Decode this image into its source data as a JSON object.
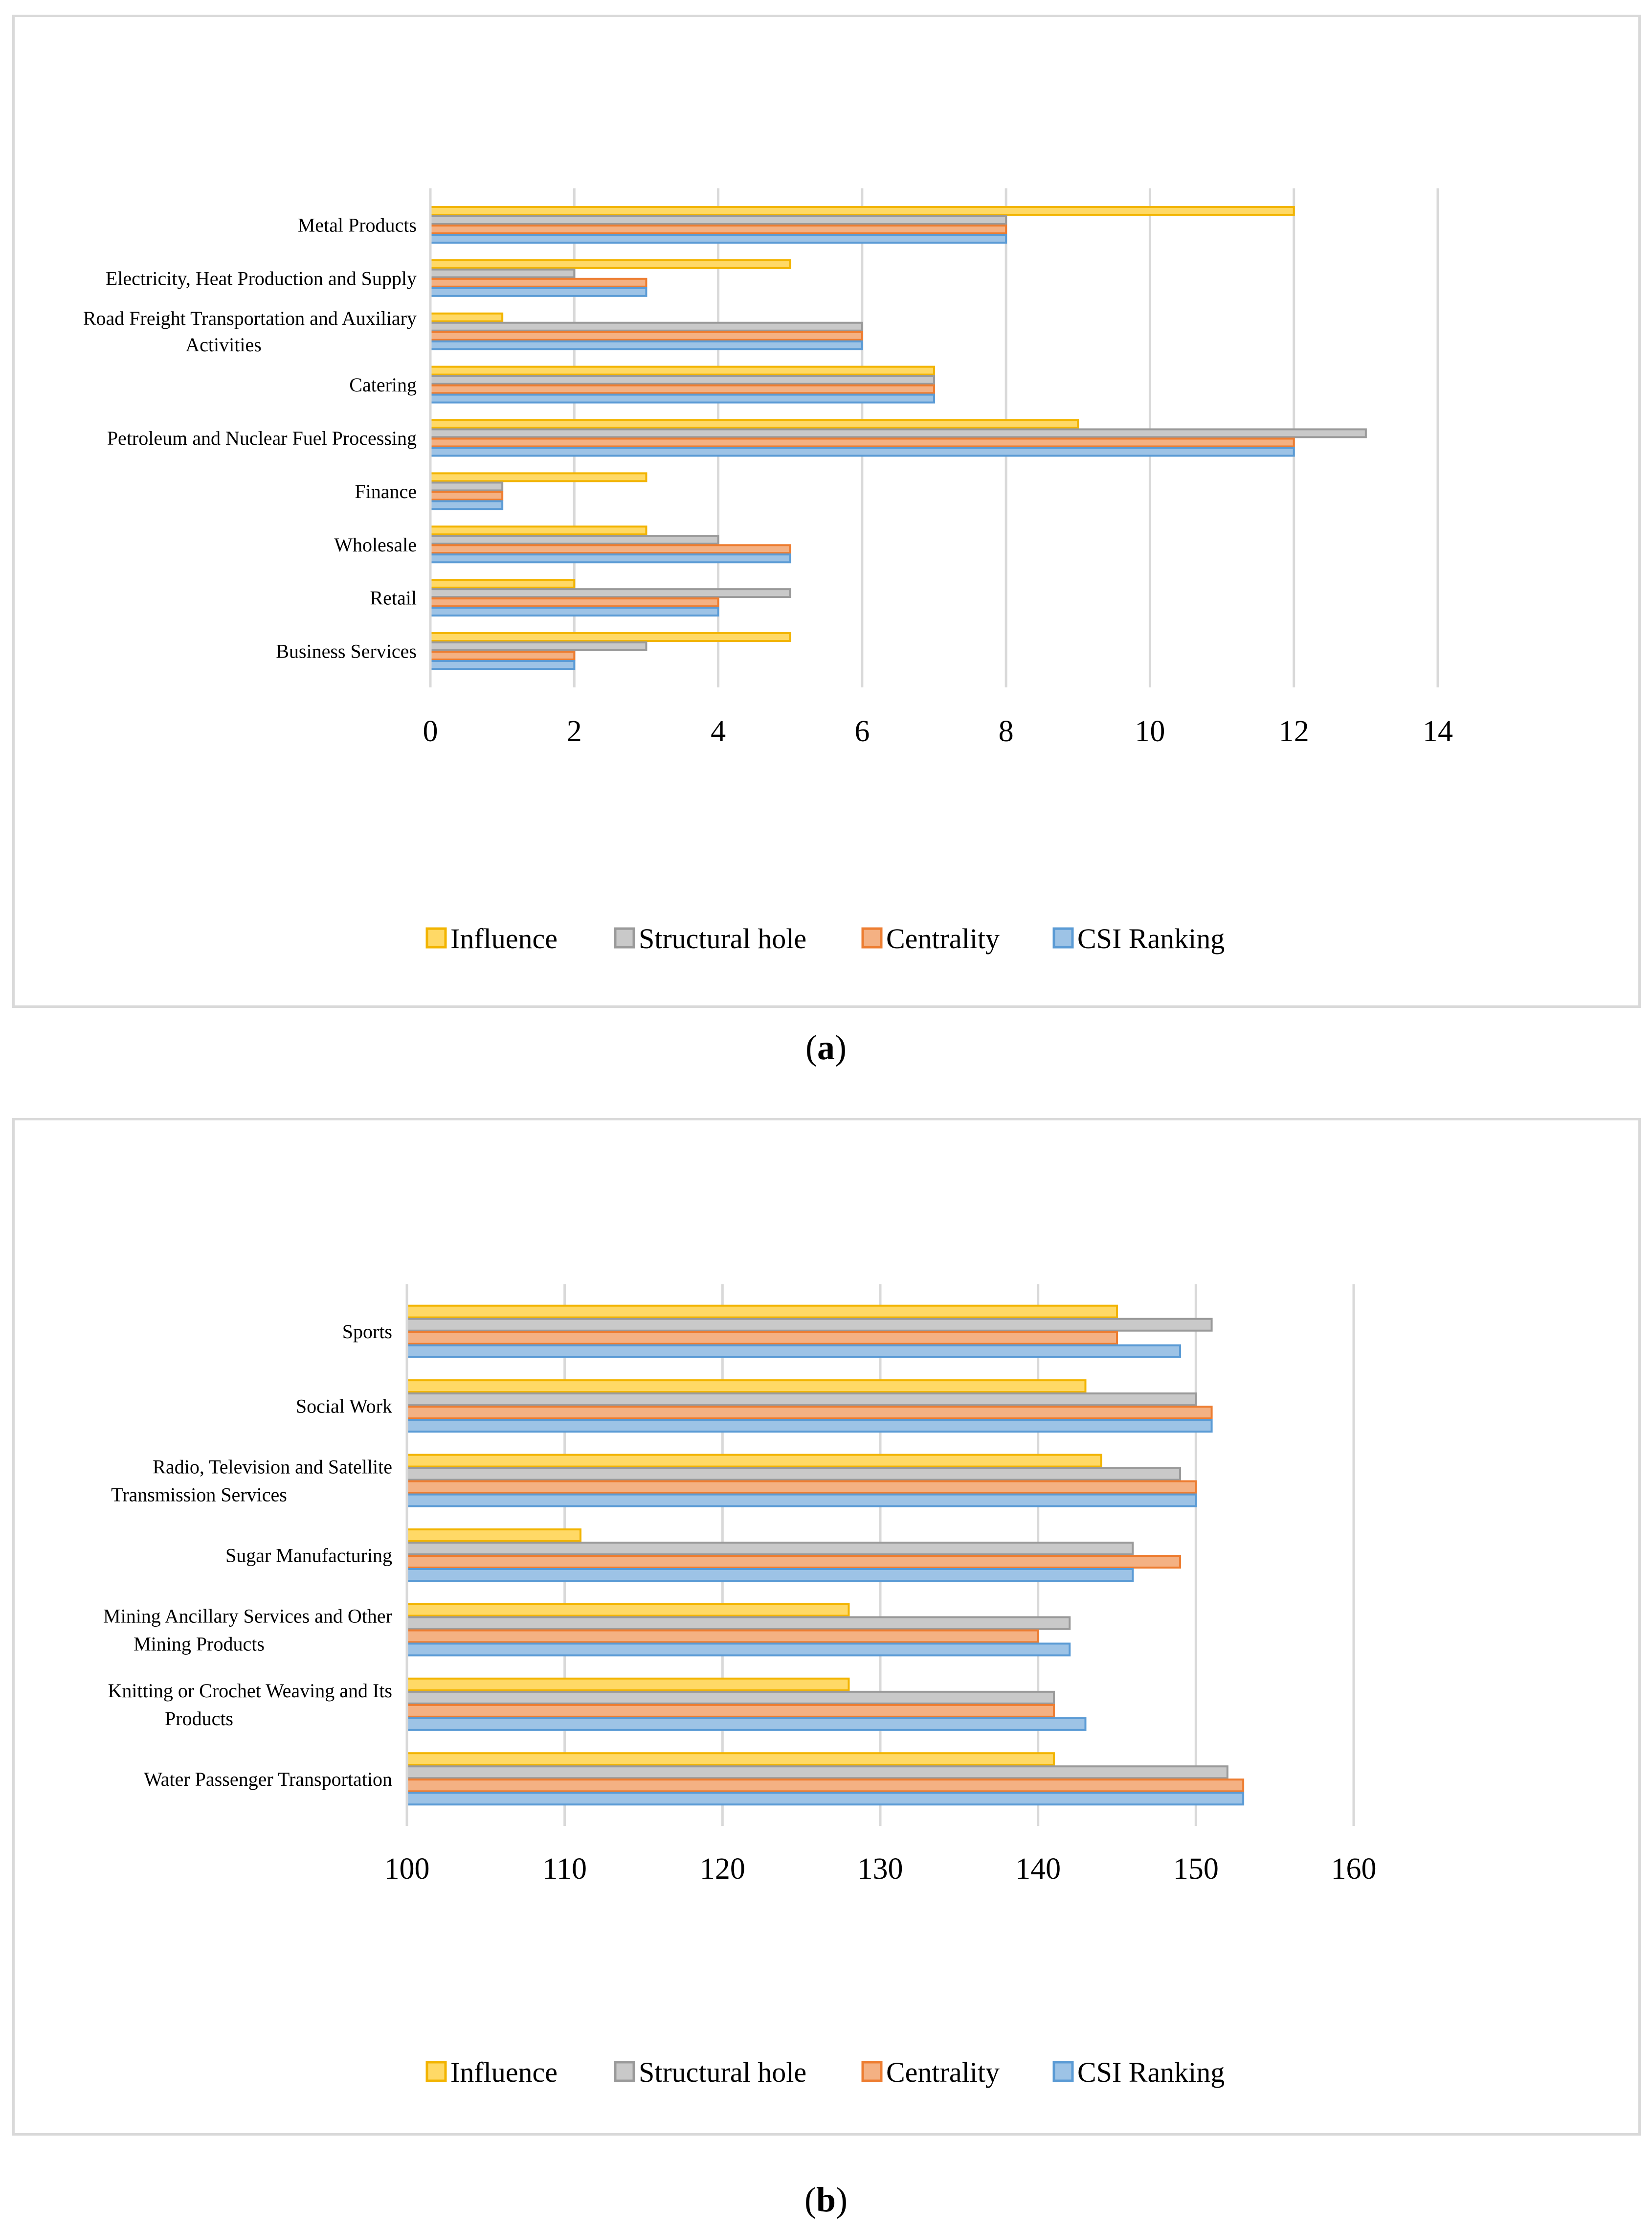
{
  "chart_data": [
    {
      "type": "bar",
      "orientation": "horizontal",
      "panel_label": "a",
      "categories": [
        "Metal Products",
        "Electricity, Heat Production and Supply",
        "Road Freight Transportation and Auxiliary Activities",
        "Catering",
        "Petroleum and Nuclear Fuel Processing",
        "Finance",
        "Wholesale",
        "Retail",
        "Business Services"
      ],
      "series": [
        {
          "name": "Influence",
          "values": [
            12,
            5,
            1,
            7,
            9,
            3,
            3,
            2,
            5
          ]
        },
        {
          "name": "Structural hole",
          "values": [
            8,
            2,
            6,
            7,
            13,
            1,
            4,
            5,
            3
          ]
        },
        {
          "name": "Centrality",
          "values": [
            8,
            3,
            6,
            7,
            12,
            1,
            5,
            4,
            2
          ]
        },
        {
          "name": "CSI Ranking",
          "values": [
            8,
            3,
            6,
            7,
            12,
            1,
            5,
            4,
            2
          ]
        }
      ],
      "xlim": [
        0,
        14
      ],
      "xticks": [
        "0",
        "2",
        "4",
        "6",
        "8",
        "10",
        "12",
        "14"
      ],
      "legend_position": "bottom-center",
      "grid": true
    },
    {
      "type": "bar",
      "orientation": "horizontal",
      "panel_label": "b",
      "categories": [
        "Sports",
        "Social Work",
        "Radio, Television and Satellite Transmission Services",
        "Sugar Manufacturing",
        "Mining Ancillary Services and Other Mining Products",
        "Knitting or Crochet Weaving and Its Products",
        "Water Passenger Transportation"
      ],
      "series": [
        {
          "name": "Influence",
          "values": [
            145,
            143,
            144,
            111,
            128,
            128,
            141
          ]
        },
        {
          "name": "Structural hole",
          "values": [
            151,
            150,
            149,
            146,
            142,
            141,
            152
          ]
        },
        {
          "name": "Centrality",
          "values": [
            145,
            151,
            150,
            149,
            140,
            141,
            153
          ]
        },
        {
          "name": "CSI Ranking",
          "values": [
            149,
            151,
            150,
            146,
            142,
            143,
            153
          ]
        }
      ],
      "xlim": [
        100,
        160
      ],
      "xticks": [
        "100",
        "110",
        "120",
        "130",
        "140",
        "150",
        "160"
      ],
      "legend_position": "bottom-center",
      "grid": true
    }
  ],
  "colors": {
    "Influence": {
      "fill": "#ffd966",
      "stroke": "#f2b400"
    },
    "Structural hole": {
      "fill": "#c9c9c9",
      "stroke": "#9a9a9a"
    },
    "Centrality": {
      "fill": "#f4b183",
      "stroke": "#ed7d31"
    },
    "CSI Ranking": {
      "fill": "#9dc3e6",
      "stroke": "#5b9bd5"
    },
    "grid": "#d9d9d9"
  },
  "captions": {
    "a": "a",
    "b": "b"
  }
}
